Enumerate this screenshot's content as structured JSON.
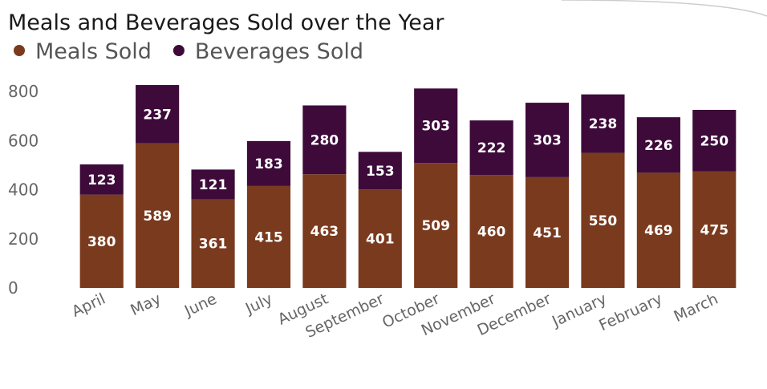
{
  "chart_data": {
    "type": "bar",
    "stacked": true,
    "title": "Meals and Beverages Sold over the Year",
    "xlabel": "",
    "ylabel": "",
    "ylim": [
      0,
      800
    ],
    "yticks": [
      0,
      200,
      400,
      600,
      800
    ],
    "legend_position": "top-left",
    "categories": [
      "April",
      "May",
      "June",
      "July",
      "August",
      "September",
      "October",
      "November",
      "December",
      "January",
      "February",
      "March"
    ],
    "series": [
      {
        "name": "Meals Sold",
        "color": "#7a3a1e",
        "values": [
          380,
          589,
          361,
          415,
          463,
          401,
          509,
          460,
          451,
          550,
          469,
          475
        ]
      },
      {
        "name": "Beverages Sold",
        "color": "#3d0a3a",
        "values": [
          123,
          237,
          121,
          183,
          280,
          153,
          303,
          222,
          303,
          238,
          226,
          250
        ]
      }
    ]
  }
}
